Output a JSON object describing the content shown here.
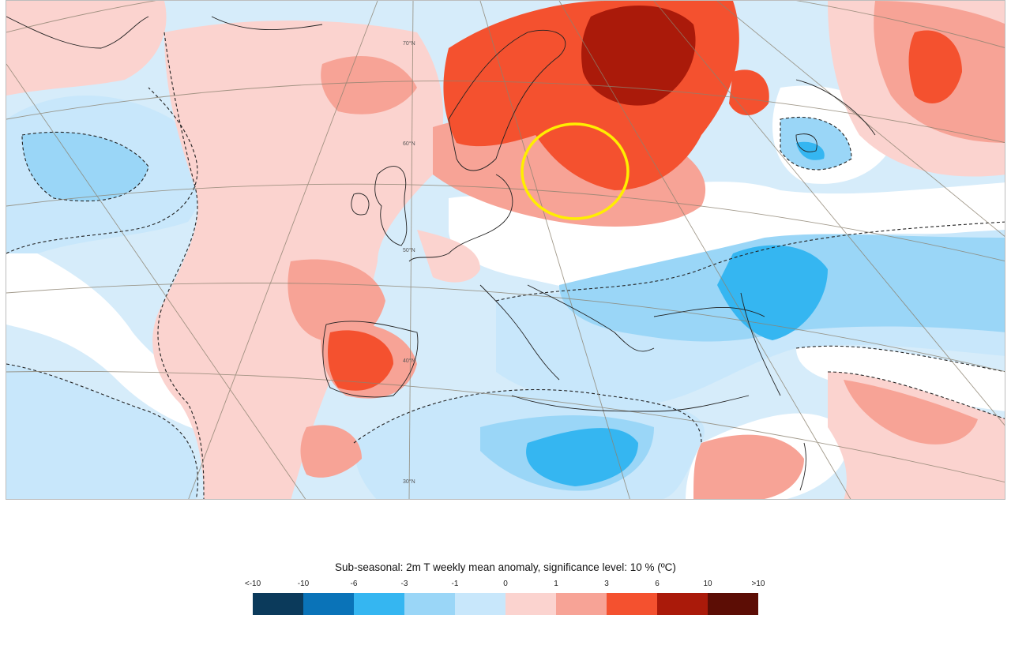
{
  "map": {
    "latitude_labels": [
      "70°N",
      "60°N",
      "50°N",
      "40°N",
      "30°N"
    ],
    "highlight": {
      "shape": "circle",
      "color": "#ffee00"
    }
  },
  "legend": {
    "title": "Sub-seasonal: 2m T weekly mean anomaly, significance level: 10 % (ºC)",
    "tick_labels": [
      "<-10",
      "-10",
      "-6",
      "-3",
      "-1",
      "0",
      "1",
      "3",
      "6",
      "10",
      ">10"
    ],
    "colors": [
      "#0b3a5b",
      "#0a73b8",
      "#35b6f1",
      "#9ad6f7",
      "#c8e7fb",
      "#fbd3cf",
      "#f7a396",
      "#f4512f",
      "#aa1a0a",
      "#5c0d05"
    ]
  }
}
